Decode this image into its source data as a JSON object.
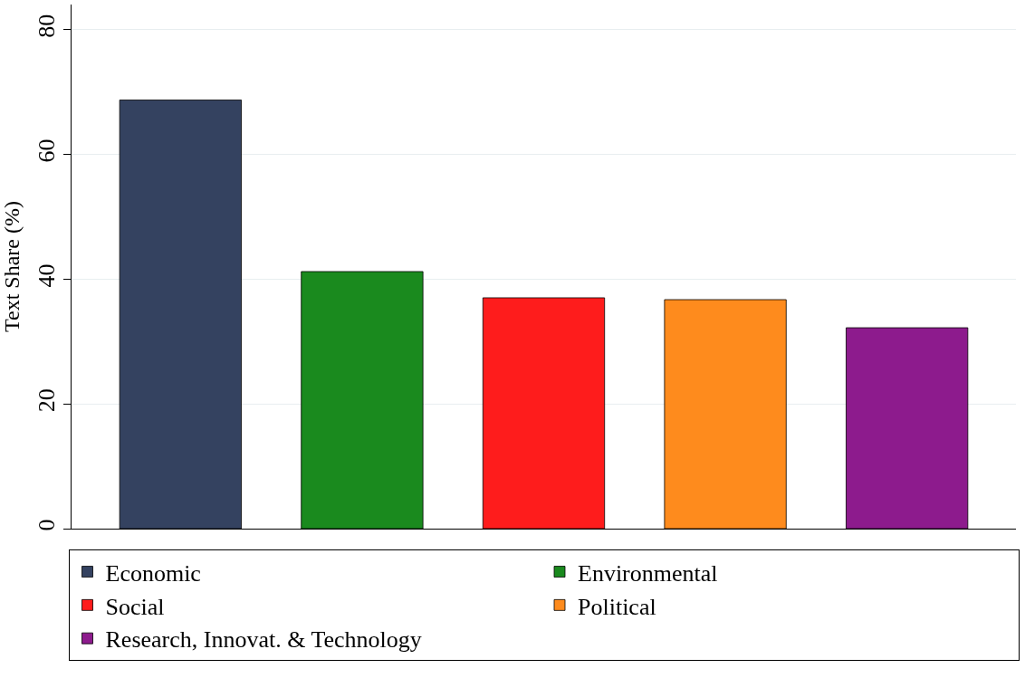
{
  "chart_data": {
    "type": "bar",
    "ylabel": "Text Share (%)",
    "categories": [
      null,
      null,
      null,
      null,
      null
    ],
    "series": [
      {
        "name": "Economic",
        "color": "#344260",
        "values": [
          68.7,
          null,
          null,
          null,
          null
        ]
      },
      {
        "name": "Environmental",
        "color": "#1a8a1e",
        "values": [
          null,
          41.2,
          null,
          null,
          null
        ]
      },
      {
        "name": "Social",
        "color": "#fe1c1c",
        "values": [
          null,
          null,
          37.0,
          null,
          null
        ]
      },
      {
        "name": "Political",
        "color": "#fe8b1d",
        "values": [
          null,
          null,
          null,
          36.7,
          null
        ]
      },
      {
        "name": "Research, Innovat. & Technology",
        "color": "#8d1b8d",
        "values": [
          null,
          null,
          null,
          null,
          32.2
        ]
      }
    ],
    "ylim": [
      0,
      84
    ],
    "yticks": [
      0,
      20,
      40,
      60,
      80
    ],
    "grid": "y",
    "legend": "bottom"
  }
}
